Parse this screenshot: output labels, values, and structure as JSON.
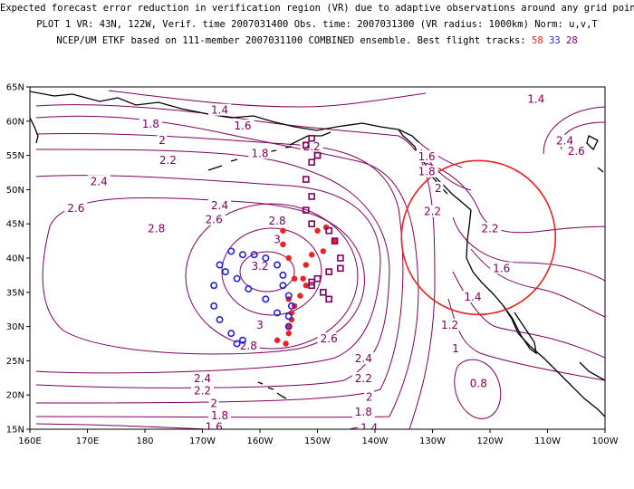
{
  "title": {
    "line1": "Expected forecast error reduction in verification region (VR) due to adaptive observations around any grid point.",
    "line2": "PLOT 1 VR: 43N, 122W, Verif. time 2007031400 Obs. time: 2007031300 (VR radius: 1000km) Norm: u,v,T",
    "line3_prefix": "NCEP/UM ETKF based on 111-member 2007031100 COMBINED ensemble.  Best flight tracks:",
    "track_a": "58",
    "track_b": "33",
    "track_c": "28"
  },
  "colors": {
    "contour": "#800060",
    "coast": "#000000",
    "vr_circle": "#ee2222",
    "track_a": "#ee2222",
    "track_b": "#2222dd",
    "track_c": "#800060"
  },
  "axes": {
    "lat_labels": [
      "65N",
      "60N",
      "55N",
      "50N",
      "45N",
      "40N",
      "35N",
      "30N",
      "25N",
      "20N",
      "15N"
    ],
    "lon_labels": [
      "160E",
      "170E",
      "180",
      "170W",
      "160W",
      "150W",
      "140W",
      "130W",
      "120W",
      "110W",
      "100W"
    ]
  },
  "contour_labels": [
    {
      "text": "1.4",
      "lon": -112,
      "lat": 63.2
    },
    {
      "text": "1.4",
      "lon": -167,
      "lat": 61.6
    },
    {
      "text": "1.8",
      "lon": -179,
      "lat": 59.6
    },
    {
      "text": "1.6",
      "lon": -163,
      "lat": 59.3
    },
    {
      "text": "2",
      "lon": -177,
      "lat": 57.2
    },
    {
      "text": "1.8",
      "lon": -160,
      "lat": 55.3
    },
    {
      "text": "2.2",
      "lon": -176,
      "lat": 54.3
    },
    {
      "text": "2.4",
      "lon": -188,
      "lat": 51.2
    },
    {
      "text": "2.6",
      "lon": -192,
      "lat": 47.3
    },
    {
      "text": "2.4",
      "lon": -167,
      "lat": 47.7
    },
    {
      "text": "2.6",
      "lon": -168,
      "lat": 45.6
    },
    {
      "text": "2.8",
      "lon": -178,
      "lat": 44.3
    },
    {
      "text": "2.8",
      "lon": -157,
      "lat": 45.4
    },
    {
      "text": "3",
      "lon": -157,
      "lat": 42.7
    },
    {
      "text": "2.2",
      "lon": -151,
      "lat": 56.3
    },
    {
      "text": "3.2",
      "lon": -160,
      "lat": 38.8
    },
    {
      "text": "2.8",
      "lon": -162,
      "lat": 27.2
    },
    {
      "text": "3",
      "lon": -160,
      "lat": 30.2
    },
    {
      "text": "2.6",
      "lon": -148,
      "lat": 28.2
    },
    {
      "text": "2.4",
      "lon": -142,
      "lat": 25.3
    },
    {
      "text": "2.2",
      "lon": -142,
      "lat": 22.4
    },
    {
      "text": "2",
      "lon": -141,
      "lat": 19.7
    },
    {
      "text": "1.8",
      "lon": -142,
      "lat": 17.5
    },
    {
      "text": "1.4",
      "lon": -141,
      "lat": 15.2
    },
    {
      "text": "2.4",
      "lon": -170,
      "lat": 22.4
    },
    {
      "text": "2.2",
      "lon": -170,
      "lat": 20.6
    },
    {
      "text": "2",
      "lon": -168,
      "lat": 18.8
    },
    {
      "text": "1.8",
      "lon": -167,
      "lat": 17.0
    },
    {
      "text": "1.6",
      "lon": -168,
      "lat": 15.3
    },
    {
      "text": "1.6",
      "lon": -131,
      "lat": 54.8
    },
    {
      "text": "1.8",
      "lon": -131,
      "lat": 52.6
    },
    {
      "text": "2",
      "lon": -129,
      "lat": 50.2
    },
    {
      "text": "2.2",
      "lon": -130,
      "lat": 46.8
    },
    {
      "text": "2.2",
      "lon": -120,
      "lat": 44.3
    },
    {
      "text": "2.4",
      "lon": -107,
      "lat": 57.1
    },
    {
      "text": "2.6",
      "lon": -105,
      "lat": 55.6
    },
    {
      "text": "1.6",
      "lon": -118,
      "lat": 38.5
    },
    {
      "text": "1.4",
      "lon": -123,
      "lat": 34.3
    },
    {
      "text": "1.2",
      "lon": -127,
      "lat": 30.2
    },
    {
      "text": "1",
      "lon": -126,
      "lat": 26.8
    },
    {
      "text": "0.8",
      "lon": -122,
      "lat": 21.7
    }
  ],
  "vr_circle": {
    "lon": -122,
    "lat": 43
  },
  "tracks": [
    {
      "name": "58",
      "marker": "dot",
      "points": [
        [
          -150,
          44
        ],
        [
          -148.5,
          44.5
        ],
        [
          -147,
          42.5
        ],
        [
          -149,
          41
        ],
        [
          -151,
          40.5
        ],
        [
          -152,
          39
        ],
        [
          -152.5,
          37
        ],
        [
          -152,
          36
        ],
        [
          -153,
          34.5
        ],
        [
          -154,
          33
        ],
        [
          -154.5,
          31
        ],
        [
          -155,
          29
        ],
        [
          -155.5,
          27.5
        ],
        [
          -157,
          28
        ],
        [
          -155,
          30
        ],
        [
          -154.5,
          32
        ],
        [
          -155,
          34
        ],
        [
          -154,
          37
        ],
        [
          -155,
          40
        ],
        [
          -156,
          42
        ],
        [
          -156,
          44
        ]
      ]
    },
    {
      "name": "33",
      "marker": "ring",
      "points": [
        [
          -165,
          41
        ],
        [
          -163,
          40.5
        ],
        [
          -161,
          40.5
        ],
        [
          -159,
          40
        ],
        [
          -157,
          39
        ],
        [
          -156,
          37.5
        ],
        [
          -156,
          36
        ],
        [
          -155,
          34.5
        ],
        [
          -154.5,
          33
        ],
        [
          -155,
          31.5
        ],
        [
          -155,
          30
        ],
        [
          -157,
          32
        ],
        [
          -159,
          34
        ],
        [
          -162,
          35.5
        ],
        [
          -164,
          37
        ],
        [
          -166,
          38
        ],
        [
          -167,
          39
        ],
        [
          -168,
          36
        ],
        [
          -168,
          33
        ],
        [
          -167,
          31
        ],
        [
          -165,
          29
        ],
        [
          -164,
          27.5
        ],
        [
          -163,
          28
        ]
      ]
    },
    {
      "name": "28",
      "marker": "square",
      "points": [
        [
          -151,
          57.5
        ],
        [
          -150,
          55
        ],
        [
          -151,
          54
        ],
        [
          -152,
          51.5
        ],
        [
          -151,
          49
        ],
        [
          -152,
          47
        ],
        [
          -151,
          45
        ],
        [
          -148,
          44
        ],
        [
          -147,
          42.5
        ],
        [
          -146,
          40
        ],
        [
          -146,
          38.5
        ],
        [
          -148,
          38
        ],
        [
          -150,
          37
        ],
        [
          -151,
          36
        ],
        [
          -149,
          35
        ],
        [
          -148,
          34
        ],
        [
          -151,
          36.5
        ],
        [
          -150,
          55
        ],
        [
          -152,
          56.5
        ]
      ]
    }
  ]
}
